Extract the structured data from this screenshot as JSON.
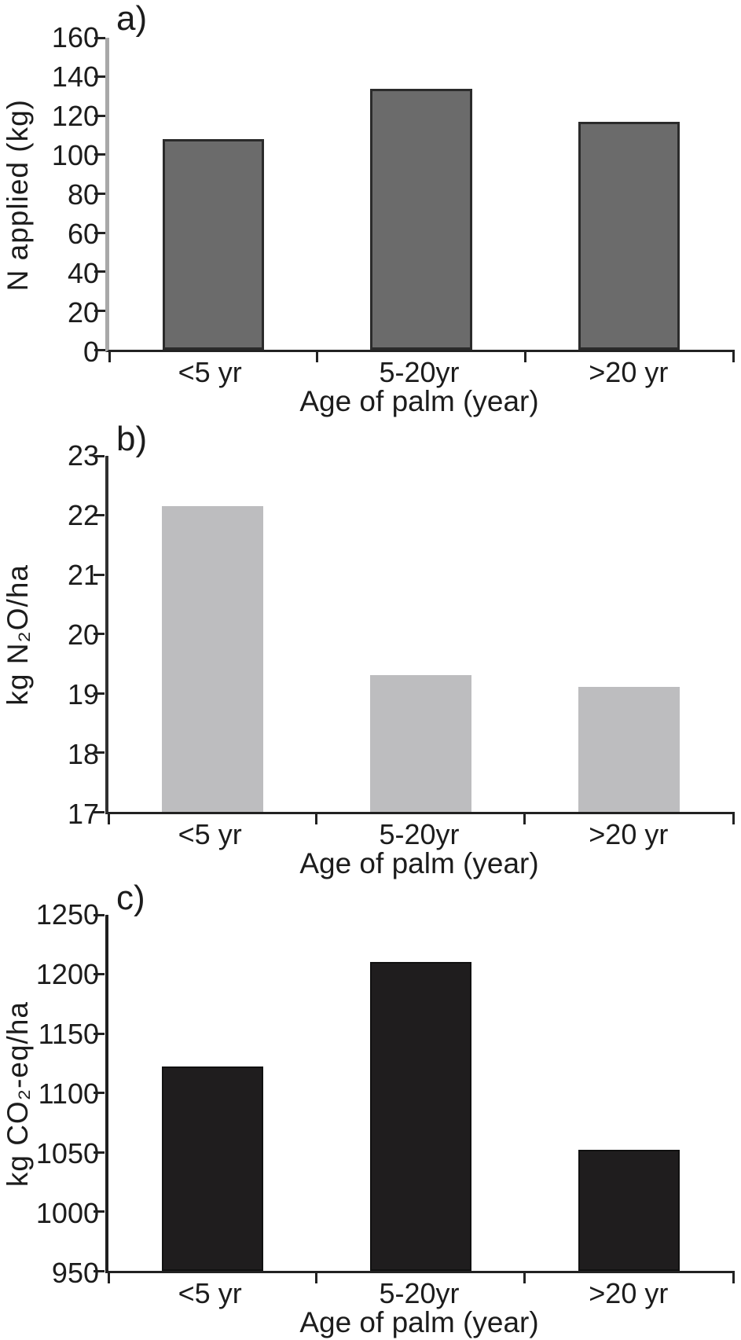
{
  "chart_data": [
    {
      "type": "bar",
      "panel_label": "a)",
      "ylabel": "N applied (kg)",
      "xlabel": "Age of palm (year)",
      "categories": [
        "<5 yr",
        "5-20yr",
        ">20 yr"
      ],
      "values": [
        108,
        134,
        117
      ],
      "ylim": [
        0,
        160
      ],
      "ytick_step": 20,
      "ytick_labels": [
        "0",
        "20",
        "40",
        "60",
        "80",
        "100",
        "120",
        "140",
        "160"
      ],
      "grid": false,
      "legend": null,
      "bar_color": "#6b6b6b",
      "bar_border_color": "#2b2b2b",
      "bar_border_width": 3,
      "y_spine_color": "#a8a8a8",
      "tick_color": "#222222"
    },
    {
      "type": "bar",
      "panel_label": "b)",
      "ylabel": "kg N₂O/ha",
      "xlabel": "Age of palm (year)",
      "categories": [
        "<5 yr",
        "5-20yr",
        ">20 yr"
      ],
      "values": [
        22.15,
        19.3,
        19.1
      ],
      "ylim": [
        17,
        23
      ],
      "ytick_step": 1,
      "ytick_labels": [
        "17",
        "18",
        "19",
        "20",
        "21",
        "22",
        "23"
      ],
      "grid": false,
      "legend": null,
      "bar_color": "#bdbdbf",
      "bar_border_color": "#bdbdbf",
      "bar_border_width": 0,
      "y_spine_color": "#303030",
      "tick_color": "#222222"
    },
    {
      "type": "bar",
      "panel_label": "c)",
      "ylabel": "kg CO₂-eq/ha",
      "xlabel": "Age of palm (year)",
      "categories": [
        "<5 yr",
        "5-20yr",
        ">20 yr"
      ],
      "values": [
        1122,
        1210,
        1052
      ],
      "ylim": [
        950,
        1250
      ],
      "ytick_step": 50,
      "ytick_labels": [
        "950",
        "1000",
        "1050",
        "1100",
        "1150",
        "1200",
        "1250"
      ],
      "grid": false,
      "legend": null,
      "bar_color": "#1f1d1e",
      "bar_border_color": "#111111",
      "bar_border_width": 2,
      "y_spine_color": "#1f1f1f",
      "tick_color": "#222222"
    }
  ]
}
